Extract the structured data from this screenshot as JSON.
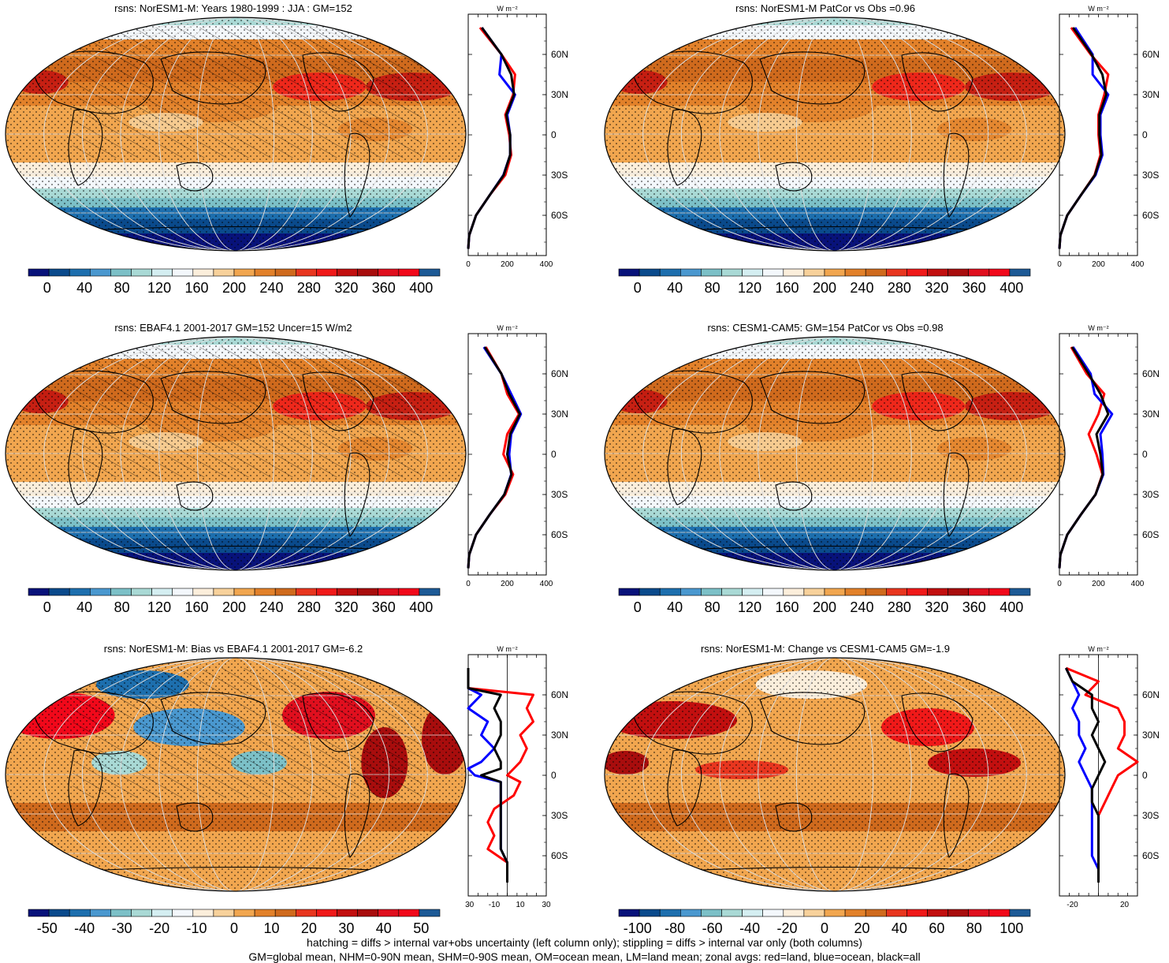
{
  "footer": {
    "line1": "hatching = diffs > internal var+obs uncertainty (left column only); stippling = diffs > internal var only (both columns)",
    "line2": "GM=global mean, NHM=0-90N mean, SHM=0-90S mean, OM=ocean mean, LM=land mean; zonal avgs: red=land, blue=ocean, black=all"
  },
  "zonal_unit": "W m⁻²",
  "lat_ticks": [
    "60N",
    "30N",
    "0",
    "30S",
    "60S"
  ],
  "colors": {
    "land": "#ff0000",
    "ocean": "#0000ff",
    "all": "#000000",
    "abs_palette": [
      "#08127a",
      "#0a4a8c",
      "#1d6fae",
      "#4a98cf",
      "#7cc0c7",
      "#a9d9d5",
      "#d4eef1",
      "#f3f7fb",
      "#fbeedb",
      "#f7d19b",
      "#f1a64f",
      "#e2812a",
      "#cf6a1d",
      "#e8361f",
      "#f01919",
      "#c20f0f",
      "#a80d0d",
      "#e00f1e",
      "#f1081a",
      "#1d5a96"
    ],
    "diff_palette": [
      "#08127a",
      "#0a4a8c",
      "#1d6fae",
      "#4a98cf",
      "#7cc0c7",
      "#a9d9d5",
      "#d4eef1",
      "#f3f7fb",
      "#fbeedb",
      "#f7d19b",
      "#f1a64f",
      "#e2812a",
      "#cf6a1d",
      "#e8361f",
      "#f01919",
      "#c20f0f",
      "#a80d0d",
      "#e00f1e",
      "#f1081a",
      "#1d5a96"
    ]
  },
  "panels": [
    {
      "title": "rsns: NorESM1-M: Years 1980-1999 : JJA : GM=152",
      "cbar_labels": [
        "0",
        "40",
        "80",
        "120",
        "160",
        "200",
        "240",
        "280",
        "320",
        "360",
        "400"
      ],
      "zonal_ticks": [
        "0",
        "200",
        "400"
      ]
    },
    {
      "title": "rsns: NorESM1-M PatCor vs Obs =0.96",
      "cbar_labels": [
        "0",
        "40",
        "80",
        "120",
        "160",
        "200",
        "240",
        "280",
        "320",
        "360",
        "400"
      ],
      "zonal_ticks": [
        "0",
        "200",
        "400"
      ]
    },
    {
      "title": "rsns: EBAF4.1 2001-2017 GM=152 Uncer=15 W/m2",
      "cbar_labels": [
        "0",
        "40",
        "80",
        "120",
        "160",
        "200",
        "240",
        "280",
        "320",
        "360",
        "400"
      ],
      "zonal_ticks": [
        "0",
        "200",
        "400"
      ]
    },
    {
      "title": "rsns: CESM1-CAM5: GM=154 PatCor vs Obs =0.98",
      "cbar_labels": [
        "0",
        "40",
        "80",
        "120",
        "160",
        "200",
        "240",
        "280",
        "320",
        "360",
        "400"
      ],
      "zonal_ticks": [
        "0",
        "200",
        "400"
      ]
    },
    {
      "title": "rsns: NorESM1-M: Bias vs EBAF4.1 2001-2017 GM=-6.2",
      "cbar_labels": [
        "-50",
        "-40",
        "-30",
        "-20",
        "-10",
        "0",
        "10",
        "20",
        "30",
        "40",
        "50"
      ],
      "zonal_ticks": [
        "-30",
        "-10",
        "10",
        "30"
      ]
    },
    {
      "title": "rsns: NorESM1-M: Change vs CESM1-CAM5 GM=-1.9",
      "cbar_labels": [
        "-100",
        "-80",
        "-60",
        "-40",
        "-20",
        "0",
        "20",
        "40",
        "60",
        "80",
        "100"
      ],
      "zonal_ticks": [
        "-20",
        "20"
      ]
    }
  ],
  "chart_data": [
    {
      "type": "heatmap",
      "title": "rsns: NorESM1-M: Years 1980-1999 : JJA : GM=152",
      "colorbar": {
        "min": 0,
        "max": 400,
        "ticks": [
          0,
          40,
          80,
          120,
          160,
          200,
          240,
          280,
          320,
          360,
          400
        ]
      },
      "zonal_mean": {
        "xlim": [
          0,
          400
        ],
        "xticks": [
          0,
          200,
          400
        ],
        "ylabel_ticks": [
          "60N",
          "30N",
          "0",
          "30S",
          "60S"
        ],
        "lat": [
          80,
          60,
          45,
          30,
          15,
          0,
          -15,
          -30,
          -45,
          -60,
          -75,
          -85
        ],
        "land": [
          60,
          170,
          240,
          230,
          190,
          210,
          220,
          190,
          110,
          40,
          5,
          0
        ],
        "ocean": [
          70,
          170,
          160,
          240,
          200,
          215,
          215,
          180,
          110,
          40,
          5,
          0
        ],
        "all": [
          70,
          170,
          220,
          235,
          195,
          215,
          215,
          182,
          110,
          40,
          5,
          0
        ]
      }
    },
    {
      "type": "heatmap",
      "title": "rsns: NorESM1-M PatCor vs Obs =0.96",
      "colorbar": {
        "min": 0,
        "max": 400,
        "ticks": [
          0,
          40,
          80,
          120,
          160,
          200,
          240,
          280,
          320,
          360,
          400
        ]
      },
      "zonal_mean": {
        "xlim": [
          0,
          400
        ],
        "xticks": [
          0,
          200,
          400
        ],
        "ylabel_ticks": [
          "60N",
          "30N",
          "0",
          "30S",
          "60S"
        ],
        "lat": [
          80,
          60,
          45,
          30,
          15,
          0,
          -15,
          -30,
          -45,
          -60,
          -75,
          -85
        ],
        "land": [
          60,
          160,
          250,
          230,
          200,
          200,
          210,
          180,
          110,
          40,
          5,
          0
        ],
        "ocean": [
          80,
          170,
          170,
          250,
          210,
          210,
          220,
          185,
          110,
          40,
          5,
          0
        ],
        "all": [
          70,
          165,
          220,
          240,
          205,
          205,
          215,
          182,
          110,
          40,
          5,
          0
        ]
      }
    },
    {
      "type": "heatmap",
      "title": "rsns: EBAF4.1 2001-2017 GM=152 Uncer=15 W/m2",
      "colorbar": {
        "min": 0,
        "max": 400,
        "ticks": [
          0,
          40,
          80,
          120,
          160,
          200,
          240,
          280,
          320,
          360,
          400
        ]
      },
      "zonal_mean": {
        "xlim": [
          0,
          400
        ],
        "xticks": [
          0,
          200,
          400
        ],
        "ylabel_ticks": [
          "60N",
          "30N",
          "0",
          "30S",
          "60S"
        ],
        "lat": [
          80,
          60,
          45,
          30,
          15,
          0,
          -15,
          -30,
          -45,
          -60,
          -75,
          -85
        ],
        "land": [
          90,
          170,
          200,
          260,
          200,
          180,
          230,
          190,
          110,
          40,
          5,
          0
        ],
        "ocean": [
          80,
          170,
          220,
          270,
          220,
          210,
          220,
          185,
          110,
          40,
          5,
          0
        ],
        "all": [
          85,
          170,
          210,
          265,
          215,
          200,
          222,
          185,
          110,
          40,
          5,
          0
        ]
      }
    },
    {
      "type": "heatmap",
      "title": "rsns: CESM1-CAM5: GM=154 PatCor vs Obs =0.98",
      "colorbar": {
        "min": 0,
        "max": 400,
        "ticks": [
          0,
          40,
          80,
          120,
          160,
          200,
          240,
          280,
          320,
          360,
          400
        ]
      },
      "zonal_mean": {
        "xlim": [
          0,
          400
        ],
        "xticks": [
          0,
          200,
          400
        ],
        "ylabel_ticks": [
          "60N",
          "30N",
          "0",
          "30S",
          "60S"
        ],
        "lat": [
          80,
          60,
          45,
          30,
          15,
          0,
          -15,
          -30,
          -45,
          -60,
          -75,
          -85
        ],
        "land": [
          60,
          140,
          230,
          200,
          150,
          190,
          220,
          185,
          110,
          40,
          5,
          0
        ],
        "ocean": [
          70,
          160,
          180,
          270,
          210,
          220,
          225,
          185,
          110,
          40,
          5,
          0
        ],
        "all": [
          65,
          150,
          210,
          250,
          190,
          210,
          222,
          185,
          110,
          40,
          5,
          0
        ]
      }
    },
    {
      "type": "heatmap",
      "title": "rsns: NorESM1-M: Bias vs EBAF4.1 2001-2017 GM=-6.2",
      "colorbar": {
        "min": -50,
        "max": 50,
        "ticks": [
          -50,
          -40,
          -30,
          -20,
          -10,
          0,
          10,
          20,
          30,
          40,
          50
        ]
      },
      "zonal_mean": {
        "xlim": [
          -30,
          30
        ],
        "xticks": [
          -30,
          -10,
          10,
          30
        ],
        "ylabel_ticks": [
          "60N",
          "30N",
          "0",
          "30S",
          "60S"
        ],
        "lat": [
          80,
          65,
          60,
          50,
          40,
          30,
          20,
          10,
          5,
          0,
          -5,
          -15,
          -25,
          -35,
          -45,
          -55,
          -65,
          -80
        ],
        "land": [
          -30,
          -30,
          20,
          15,
          20,
          10,
          15,
          10,
          5,
          0,
          10,
          5,
          -10,
          -15,
          -10,
          -15,
          0,
          0
        ],
        "ocean": [
          -30,
          -30,
          -20,
          -30,
          -15,
          -20,
          -10,
          -20,
          -30,
          -25,
          -5,
          -5,
          -5,
          -5,
          -5,
          -5,
          0,
          0
        ],
        "all": [
          -30,
          -30,
          -5,
          -10,
          -5,
          -5,
          -10,
          -5,
          -5,
          -20,
          -5,
          -5,
          -5,
          -5,
          -5,
          -5,
          0,
          0
        ]
      }
    },
    {
      "type": "heatmap",
      "title": "rsns: NorESM1-M: Change vs CESM1-CAM5 GM=-1.9",
      "colorbar": {
        "min": -100,
        "max": 100,
        "ticks": [
          -100,
          -80,
          -60,
          -40,
          -20,
          0,
          20,
          40,
          60,
          80,
          100
        ]
      },
      "zonal_mean": {
        "xlim": [
          -30,
          30
        ],
        "xticks": [
          -20,
          20
        ],
        "ylabel_ticks": [
          "60N",
          "30N",
          "0",
          "30S",
          "60S"
        ],
        "lat": [
          80,
          70,
          60,
          50,
          40,
          30,
          20,
          10,
          0,
          -10,
          -20,
          -30,
          -40,
          -50,
          -60,
          -70,
          -80
        ],
        "land": [
          -25,
          0,
          -10,
          15,
          20,
          20,
          15,
          30,
          15,
          10,
          5,
          0,
          0,
          0,
          0,
          0,
          0
        ],
        "ocean": [
          -25,
          -20,
          -15,
          -20,
          -15,
          -15,
          -10,
          -15,
          -10,
          -5,
          -5,
          -5,
          -5,
          -5,
          -5,
          0,
          0
        ],
        "all": [
          -25,
          -20,
          -5,
          -5,
          0,
          -5,
          0,
          5,
          0,
          -5,
          -5,
          0,
          0,
          0,
          0,
          0,
          0
        ]
      }
    }
  ]
}
